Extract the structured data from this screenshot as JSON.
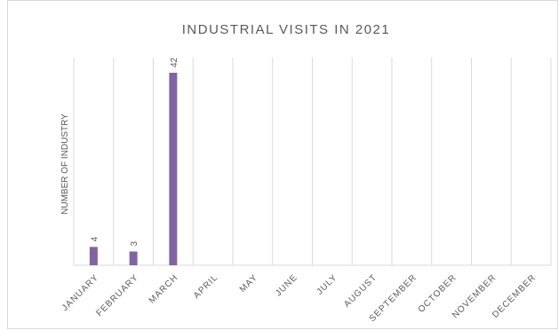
{
  "chart_data": {
    "type": "bar",
    "title": "INDUSTRIAL VISITS IN 2021",
    "y_label": "NUMBER OF INDUSTRY",
    "categories": [
      "JANUARY",
      "FEBRUARY",
      "MARCH",
      "APRIL",
      "MAY",
      "JUNE",
      "JULY",
      "AUGUST",
      "SEPTEMBER",
      "OCTOBER",
      "NOVEMBER",
      "DECEMBER"
    ],
    "values": [
      4,
      3,
      42,
      null,
      null,
      null,
      null,
      null,
      null,
      null,
      null,
      null
    ],
    "color": "#8064a2",
    "grid": true
  }
}
